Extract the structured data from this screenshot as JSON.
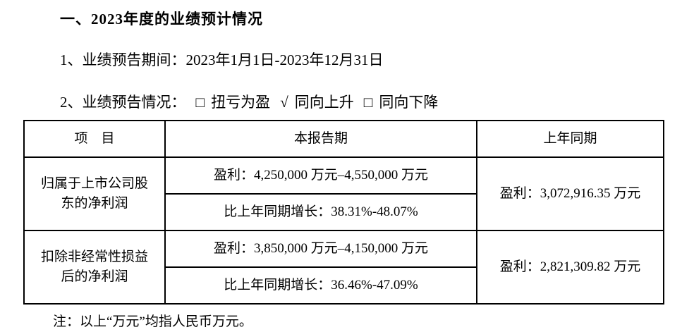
{
  "colors": {
    "background": "#ffffff",
    "text": "#000000",
    "table_border": "#000000"
  },
  "page": {
    "section_title": "一、2023年度的业绩预计情况",
    "period_line": "1、业绩预告期间：2023年1月1日-2023年12月31日",
    "status_prefix": "2、业绩预告情况：",
    "options": [
      {
        "mark": "□",
        "label": "扭亏为盈",
        "checked": false
      },
      {
        "mark": "√",
        "label": "同向上升",
        "checked": true
      },
      {
        "mark": "□",
        "label": "同向下降",
        "checked": false
      }
    ],
    "note": "注：以上“万元”均指人民币万元。"
  },
  "table": {
    "headers": [
      "项　目",
      "本报告期",
      "上年同期"
    ],
    "rows": [
      {
        "item": "归属于上市公司股东的净利润",
        "current_profit": "盈利：4,250,000 万元–4,550,000 万元",
        "current_growth": "比上年同期增长：38.31%-48.07%",
        "prior": "盈利：3,072,916.35 万元"
      },
      {
        "item": "扣除非经常性损益后的净利润",
        "current_profit": "盈利：3,850,000 万元–4,150,000 万元",
        "current_growth": "比上年同期增长：36.46%-47.09%",
        "prior": "盈利：2,821,309.82 万元"
      }
    ]
  }
}
